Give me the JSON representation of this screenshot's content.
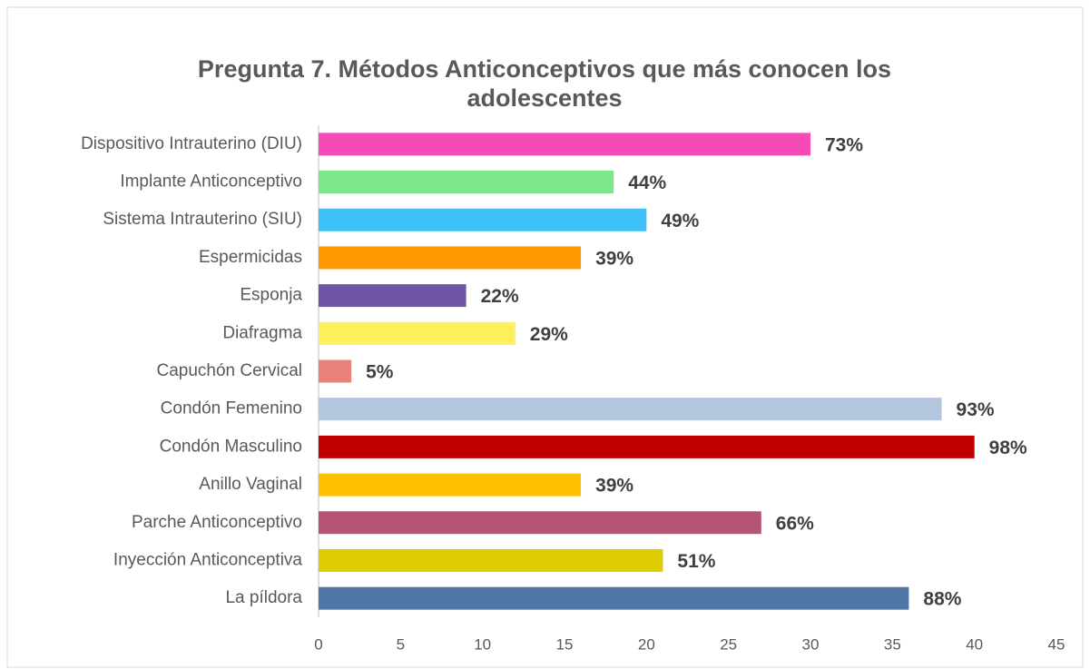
{
  "chart_data": {
    "type": "bar",
    "orientation": "horizontal",
    "title": "Pregunta 7. Métodos Anticonceptivos que más conocen los adolescentes",
    "categories": [
      "Dispositivo Intrauterino (DIU)",
      "Implante Anticonceptivo",
      "Sistema Intrauterino (SIU)",
      "Espermicidas",
      "Esponja",
      "Diafragma",
      "Capuchón Cervical",
      "Condón Femenino",
      "Condón Masculino",
      "Anillo Vaginal",
      "Parche Anticonceptivo",
      "Inyección Anticonceptiva",
      "La píldora"
    ],
    "values": [
      30,
      18,
      20,
      16,
      9,
      12,
      2,
      38,
      40,
      16,
      27,
      21,
      36
    ],
    "value_labels": [
      "73%",
      "44%",
      "49%",
      "39%",
      "22%",
      "29%",
      "5%",
      "93%",
      "98%",
      "39%",
      "66%",
      "51%",
      "88%"
    ],
    "colors": [
      "#f64bb7",
      "#7ce68a",
      "#3ec0f8",
      "#ff9900",
      "#7154a3",
      "#fdf05a",
      "#e8827a",
      "#b3c6de",
      "#c00000",
      "#ffc000",
      "#b55473",
      "#ddcc00",
      "#4f77a8"
    ],
    "xlim": [
      0,
      45
    ],
    "xticks": [
      0,
      5,
      10,
      15,
      20,
      25,
      30,
      35,
      40,
      45
    ],
    "grid": false
  }
}
